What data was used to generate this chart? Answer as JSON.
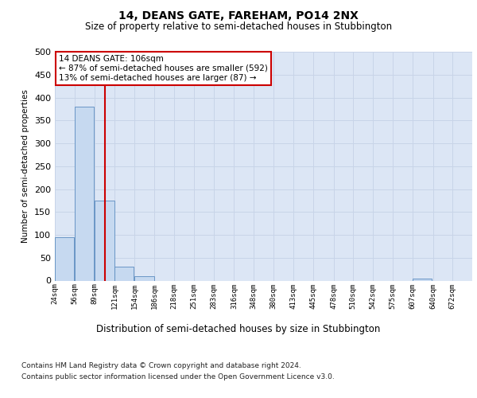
{
  "title": "14, DEANS GATE, FAREHAM, PO14 2NX",
  "subtitle": "Size of property relative to semi-detached houses in Stubbington",
  "xlabel": "Distribution of semi-detached houses by size in Stubbington",
  "ylabel": "Number of semi-detached properties",
  "bins": [
    24,
    56,
    89,
    121,
    154,
    186,
    218,
    251,
    283,
    316,
    348,
    380,
    413,
    445,
    478,
    510,
    542,
    575,
    607,
    640,
    672
  ],
  "counts": [
    95,
    380,
    175,
    30,
    10,
    0,
    0,
    0,
    0,
    0,
    0,
    0,
    0,
    0,
    0,
    0,
    0,
    0,
    5,
    0,
    0
  ],
  "bar_color": "#c6d9f0",
  "bar_edge_color": "#5a8bbf",
  "property_size": 106,
  "vline_color": "#cc0000",
  "annotation_text": "14 DEANS GATE: 106sqm\n← 87% of semi-detached houses are smaller (592)\n13% of semi-detached houses are larger (87) →",
  "annotation_box_color": "#cc0000",
  "ylim": [
    0,
    500
  ],
  "yticks": [
    0,
    50,
    100,
    150,
    200,
    250,
    300,
    350,
    400,
    450,
    500
  ],
  "grid_color": "#c8d4e8",
  "background_color": "#dce6f5",
  "footer1": "Contains HM Land Registry data © Crown copyright and database right 2024.",
  "footer2": "Contains public sector information licensed under the Open Government Licence v3.0."
}
